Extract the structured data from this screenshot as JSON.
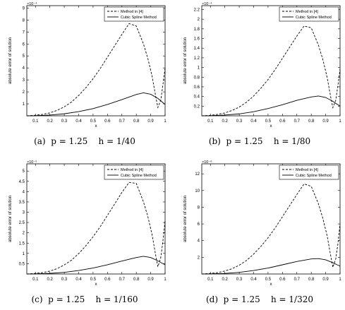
{
  "chart_data": [
    {
      "type": "line",
      "caption": "(a)  p = 1.25    h = 1/40",
      "xlabel": "x",
      "ylabel": "absolute error of solution",
      "exponent_label": "×10⁻⁴",
      "xlim": [
        0.04,
        1.0
      ],
      "ylim": [
        0,
        9.2
      ],
      "xticks": [
        "0.1",
        "0.2",
        "0.3",
        "0.4",
        "0.5",
        "0.6",
        "0.7",
        "0.8",
        "0.9",
        "1"
      ],
      "yticks": [
        "1",
        "2",
        "3",
        "4",
        "5",
        "6",
        "7",
        "8",
        "9"
      ],
      "legend_position": "top-right",
      "series": [
        {
          "name": "Method in [4]",
          "style": "dashed",
          "x": [
            0.04,
            0.1,
            0.15,
            0.2,
            0.25,
            0.3,
            0.35,
            0.4,
            0.45,
            0.5,
            0.55,
            0.6,
            0.65,
            0.7,
            0.75,
            0.8,
            0.85,
            0.88,
            0.91,
            0.935,
            0.95,
            0.97,
            0.985,
            1.0
          ],
          "y": [
            0,
            0.05,
            0.12,
            0.25,
            0.45,
            0.75,
            1.15,
            1.7,
            2.35,
            3.1,
            3.95,
            4.9,
            5.85,
            6.8,
            7.7,
            7.5,
            6.0,
            4.8,
            3.3,
            1.6,
            0.7,
            1.3,
            2.6,
            4.0
          ]
        },
        {
          "name": "Cubic Spline Method",
          "style": "solid",
          "x": [
            0.04,
            0.1,
            0.2,
            0.3,
            0.4,
            0.5,
            0.6,
            0.7,
            0.8,
            0.85,
            0.9,
            0.95,
            0.98,
            1.0
          ],
          "y": [
            0,
            0.01,
            0.06,
            0.17,
            0.35,
            0.6,
            0.95,
            1.35,
            1.78,
            1.92,
            1.8,
            1.45,
            1.15,
            0.95
          ]
        }
      ]
    },
    {
      "type": "line",
      "caption": "(b)  p = 1.25    h = 1/80",
      "xlabel": "x",
      "ylabel": "absolute error of solution",
      "exponent_label": "×10⁻⁴",
      "xlim": [
        0.04,
        1.0
      ],
      "ylim": [
        0,
        2.28
      ],
      "xticks": [
        "0.1",
        "0.2",
        "0.3",
        "0.4",
        "0.5",
        "0.6",
        "0.7",
        "0.8",
        "0.9",
        "1"
      ],
      "yticks": [
        "0.2",
        "0.4",
        "0.6",
        "0.8",
        "1",
        "1.2",
        "1.4",
        "1.6",
        "1.8",
        "2",
        "2.2"
      ],
      "legend_position": "top-right",
      "series": [
        {
          "name": "Method in [4]",
          "style": "dashed",
          "x": [
            0.04,
            0.1,
            0.15,
            0.2,
            0.25,
            0.3,
            0.35,
            0.4,
            0.45,
            0.5,
            0.55,
            0.6,
            0.65,
            0.7,
            0.75,
            0.8,
            0.85,
            0.88,
            0.91,
            0.935,
            0.95,
            0.97,
            0.985,
            1.0
          ],
          "y": [
            0,
            0.01,
            0.03,
            0.06,
            0.11,
            0.18,
            0.28,
            0.41,
            0.57,
            0.75,
            0.96,
            1.19,
            1.42,
            1.65,
            1.86,
            1.82,
            1.46,
            1.17,
            0.8,
            0.39,
            0.17,
            0.32,
            0.63,
            0.97
          ]
        },
        {
          "name": "Cubic Spline Method",
          "style": "solid",
          "x": [
            0.04,
            0.1,
            0.2,
            0.3,
            0.4,
            0.5,
            0.6,
            0.7,
            0.8,
            0.85,
            0.9,
            0.95,
            0.98,
            1.0
          ],
          "y": [
            0,
            0.003,
            0.015,
            0.04,
            0.085,
            0.15,
            0.23,
            0.32,
            0.39,
            0.41,
            0.38,
            0.3,
            0.24,
            0.2
          ]
        }
      ]
    },
    {
      "type": "line",
      "caption": "(c)  p = 1.25    h = 1/160",
      "xlabel": "x",
      "ylabel": "absolute error of solution",
      "exponent_label": "×10⁻⁵",
      "xlim": [
        0.04,
        1.0
      ],
      "ylim": [
        0,
        5.35
      ],
      "xticks": [
        "0.1",
        "0.2",
        "0.3",
        "0.4",
        "0.5",
        "0.6",
        "0.7",
        "0.8",
        "0.9",
        "1"
      ],
      "yticks": [
        "0.5",
        "1",
        "1.5",
        "2",
        "2.5",
        "3",
        "3.5",
        "4",
        "4.5",
        "5"
      ],
      "legend_position": "top-right",
      "series": [
        {
          "name": "Method in [4]",
          "style": "dashed",
          "x": [
            0.04,
            0.1,
            0.15,
            0.2,
            0.25,
            0.3,
            0.35,
            0.4,
            0.45,
            0.5,
            0.55,
            0.6,
            0.65,
            0.7,
            0.75,
            0.8,
            0.85,
            0.88,
            0.91,
            0.935,
            0.95,
            0.97,
            0.985,
            1.0
          ],
          "y": [
            0,
            0.03,
            0.07,
            0.14,
            0.26,
            0.44,
            0.67,
            0.99,
            1.37,
            1.81,
            2.3,
            2.85,
            3.4,
            3.96,
            4.45,
            4.4,
            3.5,
            2.8,
            1.9,
            0.9,
            0.35,
            0.8,
            1.6,
            2.6
          ]
        },
        {
          "name": "Cubic Spline Method",
          "style": "solid",
          "x": [
            0.04,
            0.1,
            0.2,
            0.3,
            0.4,
            0.5,
            0.6,
            0.7,
            0.8,
            0.85,
            0.9,
            0.95,
            0.98,
            1.0
          ],
          "y": [
            0,
            0.005,
            0.03,
            0.08,
            0.17,
            0.29,
            0.45,
            0.63,
            0.8,
            0.86,
            0.8,
            0.64,
            0.52,
            0.45
          ]
        }
      ]
    },
    {
      "type": "line",
      "caption": "(d)  p = 1.25    h = 1/320",
      "xlabel": "x",
      "ylabel": "absolute error of solution",
      "exponent_label": "×10⁻⁶",
      "xlim": [
        0.04,
        1.0
      ],
      "ylim": [
        0,
        13.2
      ],
      "xticks": [
        "0.1",
        "0.2",
        "0.3",
        "0.4",
        "0.5",
        "0.6",
        "0.7",
        "0.8",
        "0.9",
        "1"
      ],
      "yticks": [
        "2",
        "4",
        "6",
        "8",
        "10",
        "12"
      ],
      "legend_position": "top-right",
      "series": [
        {
          "name": "Method in [4]",
          "style": "dashed",
          "x": [
            0.04,
            0.1,
            0.15,
            0.2,
            0.25,
            0.3,
            0.35,
            0.4,
            0.45,
            0.5,
            0.55,
            0.6,
            0.65,
            0.7,
            0.75,
            0.8,
            0.85,
            0.88,
            0.91,
            0.935,
            0.95,
            0.97,
            0.985,
            1.0
          ],
          "y": [
            0,
            0.07,
            0.17,
            0.35,
            0.63,
            1.05,
            1.61,
            2.38,
            3.3,
            4.34,
            5.53,
            6.86,
            8.19,
            9.52,
            10.8,
            10.5,
            8.4,
            6.7,
            4.6,
            2.2,
            0.8,
            1.8,
            3.6,
            6.0
          ]
        },
        {
          "name": "Cubic Spline Method",
          "style": "solid",
          "x": [
            0.04,
            0.1,
            0.2,
            0.3,
            0.4,
            0.5,
            0.6,
            0.7,
            0.8,
            0.85,
            0.9,
            0.95,
            0.98,
            1.0
          ],
          "y": [
            0,
            0.012,
            0.07,
            0.2,
            0.42,
            0.71,
            1.1,
            1.5,
            1.8,
            1.85,
            1.7,
            1.35,
            1.1,
            0.95
          ]
        }
      ]
    }
  ]
}
